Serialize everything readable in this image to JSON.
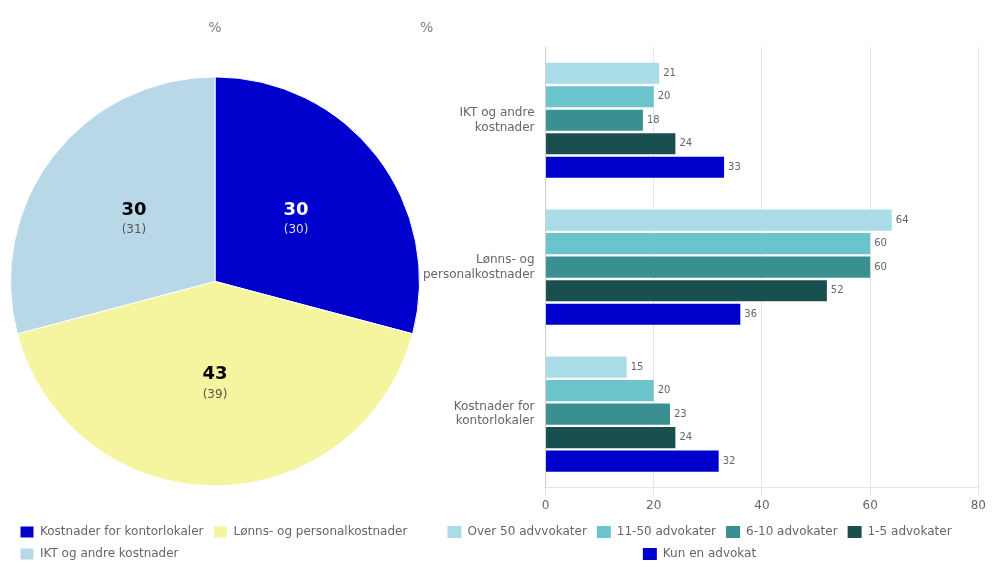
{
  "chart_data": [
    {
      "type": "pie",
      "ylabel": "%",
      "categories": [
        "Kostnader for kontorlokaler",
        "Lønns- og personalkostnader",
        "IKT og andre kostnader"
      ],
      "values": [
        30,
        43,
        30
      ],
      "colors": [
        "#0000CC",
        "#F5F5A0",
        "#B8D8E8"
      ],
      "data_labels": true,
      "values_previous": [
        30,
        39,
        31
      ],
      "value_labels_previous": [
        "(30)",
        "(39)",
        "(31)"
      ],
      "legend": "lower left"
    },
    {
      "type": "bar",
      "orientation": "horizontal",
      "ylabel": "%",
      "categories": [
        "IKT og andre\nkostnader",
        "Lønns- og\npersonalkostnader",
        "Kostnader for\nkontorlokaler"
      ],
      "series": [
        {
          "name": "Over 50 advvokater",
          "color": "#AADCE8",
          "values": [
            21,
            64,
            15
          ]
        },
        {
          "name": "11-50 advokater",
          "color": "#6BC4CC",
          "values": [
            20,
            60,
            20
          ]
        },
        {
          "name": "6-10 advokater",
          "color": "#3A9090",
          "values": [
            18,
            60,
            23
          ]
        },
        {
          "name": "1-5 advokater",
          "color": "#1A4F50",
          "values": [
            24,
            52,
            24
          ]
        },
        {
          "name": "Kun en advokat",
          "color": "#0000CC",
          "values": [
            33,
            36,
            32
          ]
        }
      ],
      "xlim": [
        0,
        80
      ],
      "xticks": [
        0,
        20,
        40,
        60,
        80
      ],
      "grid": true,
      "data_labels": true,
      "legend": "lower center"
    }
  ]
}
